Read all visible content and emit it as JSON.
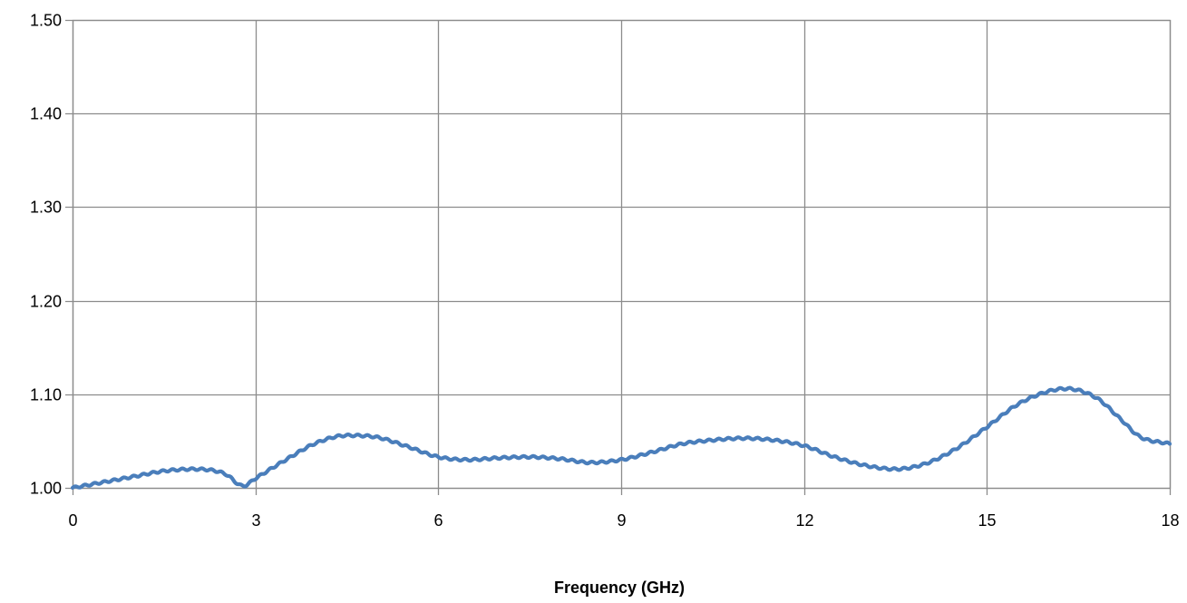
{
  "chart_data": {
    "type": "line",
    "title": "",
    "xlabel": "Frequency (GHz)",
    "ylabel": "",
    "xlim": [
      0,
      18
    ],
    "ylim": [
      1.0,
      1.5
    ],
    "x_ticks": [
      0,
      3,
      6,
      9,
      12,
      15,
      18
    ],
    "x_tick_labels": [
      "0",
      "3",
      "6",
      "9",
      "12",
      "15",
      "18"
    ],
    "y_ticks": [
      1.0,
      1.1,
      1.2,
      1.3,
      1.4,
      1.5
    ],
    "y_tick_labels": [
      "1.00",
      "1.10",
      "1.20",
      "1.30",
      "1.40",
      "1.50"
    ],
    "grid": true,
    "legend": "none",
    "series_color": "#4a7ebb",
    "grid_color": "#8c8c8c",
    "series": [
      {
        "x": [
          0,
          0.5,
          1.0,
          1.5,
          2.0,
          2.5,
          2.8,
          3.0,
          3.5,
          4.0,
          4.5,
          5.0,
          5.5,
          6.0,
          6.5,
          7.0,
          7.5,
          8.0,
          8.5,
          9.0,
          9.5,
          10.0,
          10.5,
          11.0,
          11.5,
          12.0,
          12.5,
          13.0,
          13.5,
          14.0,
          14.5,
          15.0,
          15.5,
          16.0,
          16.3,
          16.8,
          17.2,
          17.5,
          18.0
        ],
        "y": [
          1.0,
          1.006,
          1.012,
          1.018,
          1.02,
          1.015,
          1.002,
          1.01,
          1.03,
          1.048,
          1.056,
          1.054,
          1.044,
          1.033,
          1.03,
          1.032,
          1.033,
          1.031,
          1.027,
          1.03,
          1.038,
          1.047,
          1.051,
          1.053,
          1.051,
          1.045,
          1.033,
          1.024,
          1.02,
          1.026,
          1.042,
          1.065,
          1.089,
          1.103,
          1.106,
          1.096,
          1.073,
          1.055,
          1.047
        ]
      }
    ]
  }
}
